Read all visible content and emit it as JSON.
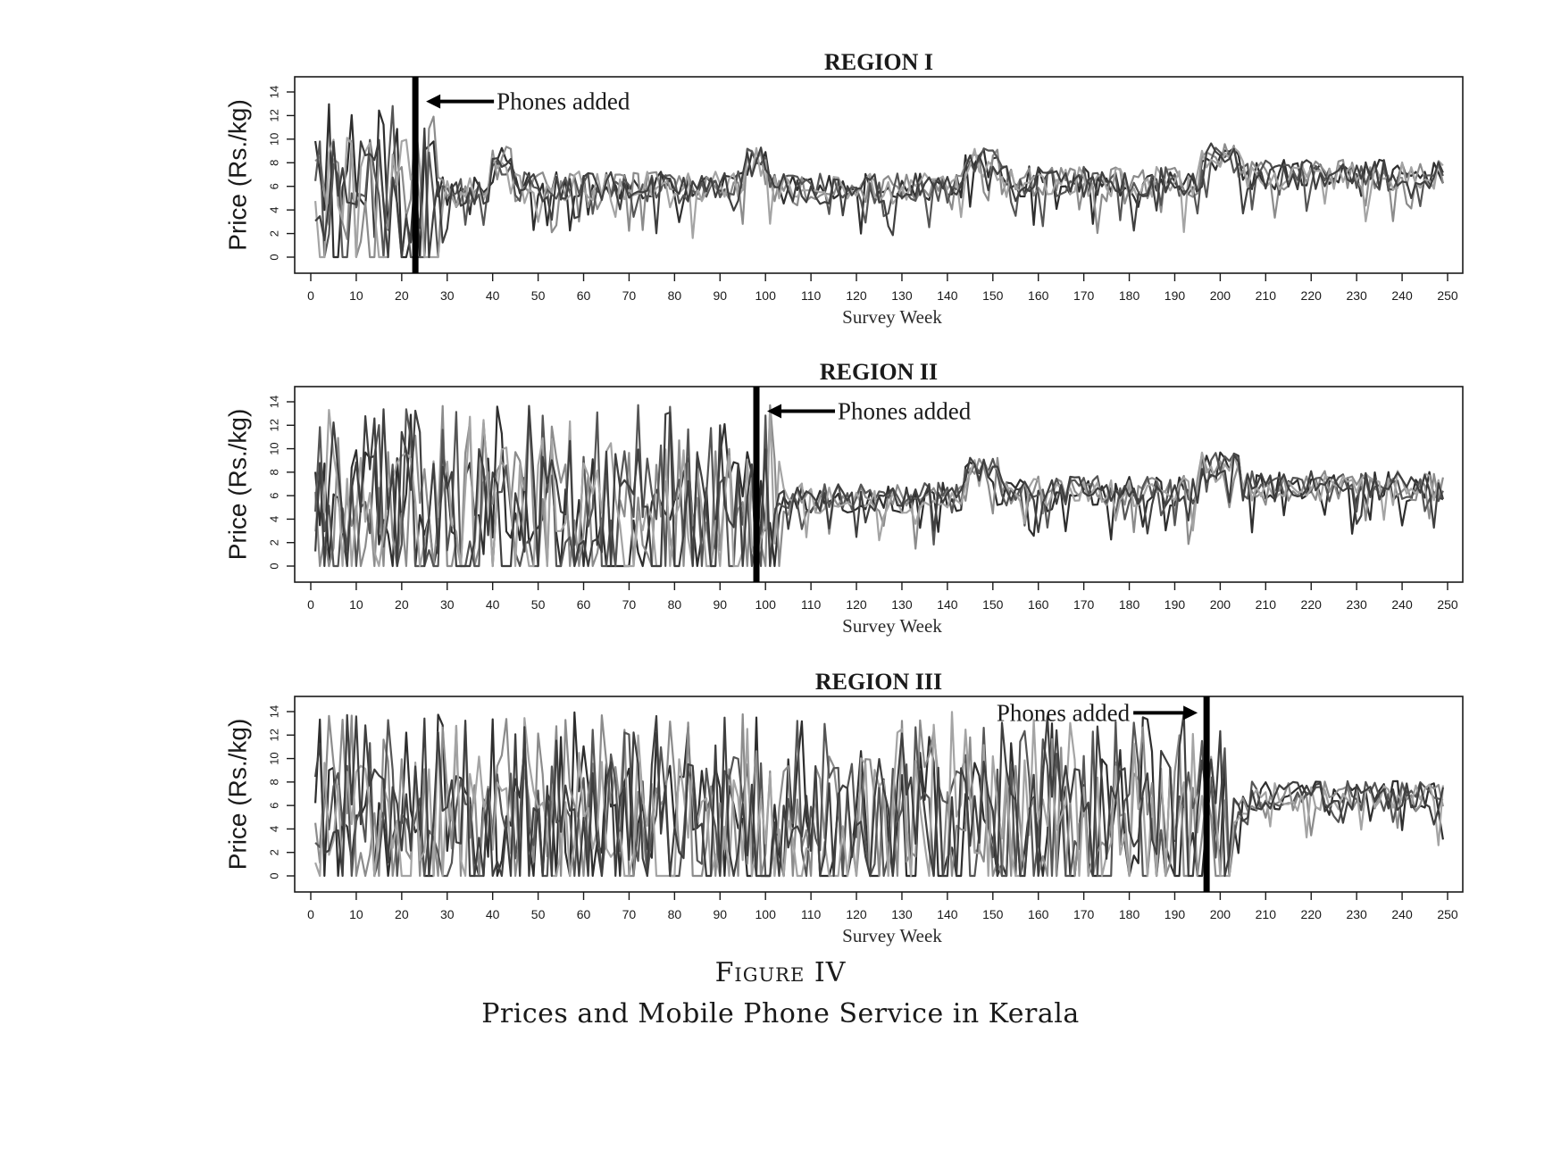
{
  "figure": {
    "label_prefix": "Figure",
    "label_number": "IV",
    "subtitle": "Prices and Mobile Phone Service in Kerala"
  },
  "chart_data": [
    {
      "type": "line",
      "title": "REGION I",
      "xlabel": "Survey Week",
      "ylabel": "Price (Rs./kg)",
      "xlim": [
        0,
        250
      ],
      "ylim": [
        0,
        14
      ],
      "xticks": [
        0,
        10,
        20,
        30,
        40,
        50,
        60,
        70,
        80,
        90,
        100,
        110,
        120,
        130,
        140,
        150,
        160,
        170,
        180,
        190,
        200,
        210,
        220,
        230,
        240,
        250
      ],
      "yticks": [
        0,
        2,
        4,
        6,
        8,
        10,
        12,
        14
      ],
      "grid": false,
      "phones_added_week": 23,
      "annotation": {
        "text": "Phones added",
        "arrow_direction": "left",
        "y": 13.2
      },
      "series_count": 5,
      "colors": [
        "#2e2e2e",
        "#8c8c8c",
        "#555555",
        "#a4a4a4",
        "#3f3f3f"
      ],
      "level_segments": [
        {
          "from": 0,
          "to": 40,
          "mean": 5.5
        },
        {
          "from": 40,
          "to": 45,
          "mean": 8.2
        },
        {
          "from": 45,
          "to": 96,
          "mean": 6.0
        },
        {
          "from": 96,
          "to": 101,
          "mean": 8.0
        },
        {
          "from": 101,
          "to": 144,
          "mean": 5.8
        },
        {
          "from": 144,
          "to": 152,
          "mean": 8.0
        },
        {
          "from": 152,
          "to": 196,
          "mean": 6.4
        },
        {
          "from": 196,
          "to": 205,
          "mean": 8.4
        },
        {
          "from": 205,
          "to": 250,
          "mean": 7.0
        }
      ]
    },
    {
      "type": "line",
      "title": "REGION II",
      "xlabel": "Survey Week",
      "ylabel": "Price (Rs./kg)",
      "xlim": [
        0,
        250
      ],
      "ylim": [
        0,
        14
      ],
      "xticks": [
        0,
        10,
        20,
        30,
        40,
        50,
        60,
        70,
        80,
        90,
        100,
        110,
        120,
        130,
        140,
        150,
        160,
        170,
        180,
        190,
        200,
        210,
        220,
        230,
        240,
        250
      ],
      "yticks": [
        0,
        2,
        4,
        6,
        8,
        10,
        12,
        14
      ],
      "grid": false,
      "phones_added_week": 98,
      "annotation": {
        "text": "Phones added",
        "arrow_direction": "left",
        "y": 13.2
      },
      "series_count": 5,
      "colors": [
        "#2e2e2e",
        "#8c8c8c",
        "#555555",
        "#a4a4a4",
        "#3f3f3f"
      ],
      "level_segments": [
        {
          "from": 0,
          "to": 106,
          "mean": 5.5
        },
        {
          "from": 106,
          "to": 144,
          "mean": 5.8
        },
        {
          "from": 144,
          "to": 152,
          "mean": 8.0
        },
        {
          "from": 152,
          "to": 196,
          "mean": 6.4
        },
        {
          "from": 196,
          "to": 205,
          "mean": 8.4
        },
        {
          "from": 205,
          "to": 250,
          "mean": 6.8
        }
      ]
    },
    {
      "type": "line",
      "title": "REGION III",
      "xlabel": "Survey Week",
      "ylabel": "Price (Rs./kg)",
      "xlim": [
        0,
        250
      ],
      "ylim": [
        0,
        14
      ],
      "xticks": [
        0,
        10,
        20,
        30,
        40,
        50,
        60,
        70,
        80,
        90,
        100,
        110,
        120,
        130,
        140,
        150,
        160,
        170,
        180,
        190,
        200,
        210,
        220,
        230,
        240,
        250
      ],
      "yticks": [
        0,
        2,
        4,
        6,
        8,
        10,
        12,
        14
      ],
      "grid": false,
      "phones_added_week": 197,
      "annotation": {
        "text": "Phones added",
        "arrow_direction": "right",
        "y": 13.9
      },
      "series_count": 5,
      "colors": [
        "#2e2e2e",
        "#8c8c8c",
        "#555555",
        "#a4a4a4",
        "#3f3f3f"
      ],
      "level_segments": [
        {
          "from": 0,
          "to": 207,
          "mean": 5.5
        },
        {
          "from": 207,
          "to": 250,
          "mean": 6.8
        }
      ]
    }
  ]
}
